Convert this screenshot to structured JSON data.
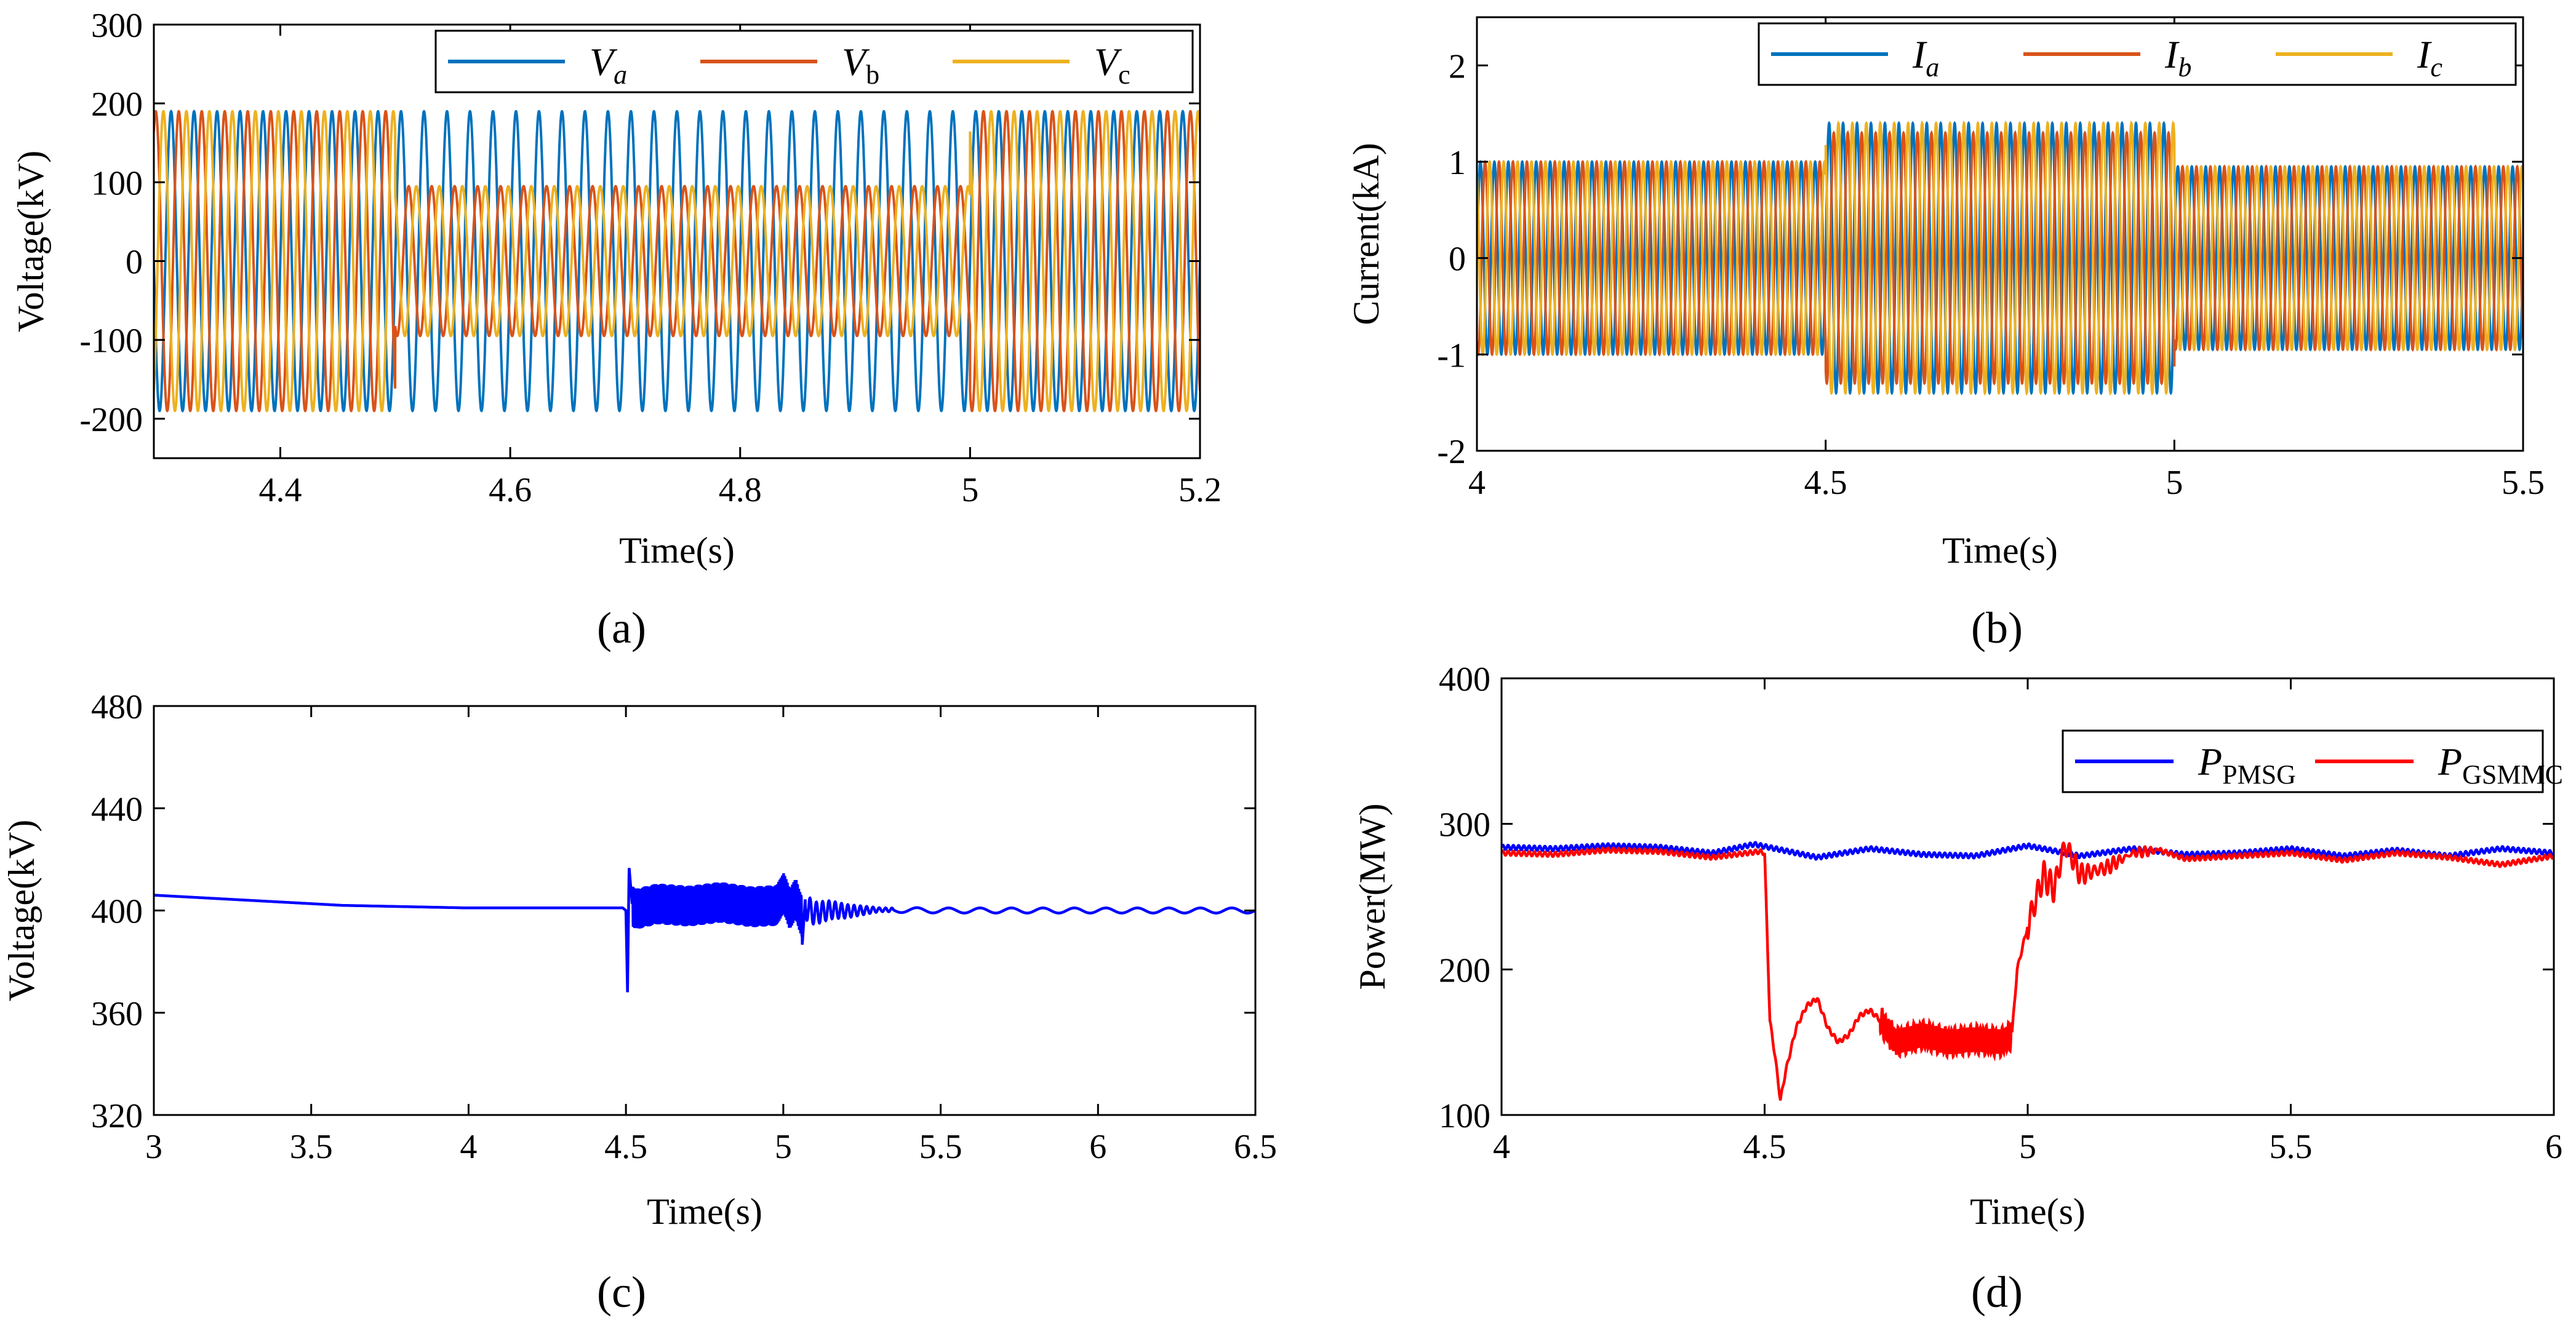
{
  "colors": {
    "blue": "#0072BD",
    "orange": "#D95319",
    "yellow": "#EDB120",
    "pure_blue": "#0000FF",
    "red": "#FF0000"
  },
  "chart_data": [
    {
      "id": "a",
      "type": "line",
      "caption": "(a)",
      "xlabel": "Time(s)",
      "ylabel": "Voltage(kV)",
      "xlim": [
        4.29,
        5.2
      ],
      "ylim": [
        -250,
        300
      ],
      "xticks": [
        4.4,
        4.6,
        4.8,
        5,
        5.2
      ],
      "xtick_labels": [
        "4.4",
        "4.6",
        "4.8",
        "5",
        "5.2"
      ],
      "yticks": [
        -200,
        -100,
        0,
        100,
        200,
        300
      ],
      "ytick_labels": [
        "-200",
        "-100",
        "0",
        "100",
        "200",
        "300"
      ],
      "legend_position": "top-right",
      "waveform": {
        "kind": "three-phase-sine",
        "frequency_hz": 50
      },
      "series": [
        {
          "name": "V",
          "sub": "a",
          "sub_italic": true,
          "color": "#0072BD",
          "amplitude": [
            [
              4.29,
              5.2,
              190
            ]
          ],
          "phase_deg": 0,
          "collapse": []
        },
        {
          "name": "V",
          "sub": "b",
          "sub_italic": false,
          "color": "#D95319",
          "amplitude": [
            [
              4.29,
              4.5,
              190
            ],
            [
              4.5,
              5.0,
              95
            ],
            [
              5.0,
              5.2,
              190
            ]
          ],
          "phase_deg": -120,
          "collapse": []
        },
        {
          "name": "V",
          "sub": "c",
          "sub_italic": false,
          "color": "#EDB120",
          "amplitude": [
            [
              4.29,
              4.5,
              190
            ],
            [
              4.5,
              5.0,
              95
            ],
            [
              5.0,
              5.2,
              190
            ]
          ],
          "phase_deg": 120,
          "collapse": []
        }
      ]
    },
    {
      "id": "b",
      "type": "line",
      "caption": "(b)",
      "xlabel": "Time(s)",
      "ylabel": "Current(kA)",
      "xlim": [
        4,
        5.5
      ],
      "ylim": [
        -2,
        2.5
      ],
      "xticks": [
        4,
        4.5,
        5,
        5.5
      ],
      "xtick_labels": [
        "4",
        "4.5",
        "5",
        "5.5"
      ],
      "yticks": [
        -2,
        -1,
        0,
        1,
        2
      ],
      "ytick_labels": [
        "-2",
        "-1",
        "0",
        "1",
        "2"
      ],
      "legend_position": "top-right",
      "waveform": {
        "kind": "three-phase-sine",
        "frequency_hz": 50
      },
      "series": [
        {
          "name": "I",
          "sub": "a",
          "sub_italic": true,
          "color": "#0072BD",
          "amplitude": [
            [
              4,
              4.5,
              1.0
            ],
            [
              4.5,
              5.0,
              1.4
            ],
            [
              5.0,
              5.5,
              0.95
            ]
          ],
          "phase_deg": 0,
          "collapse": []
        },
        {
          "name": "I",
          "sub": "b",
          "sub_italic": true,
          "color": "#D95319",
          "amplitude": [
            [
              4,
              4.5,
              1.0
            ],
            [
              4.5,
              5.0,
              1.3
            ],
            [
              5.0,
              5.5,
              0.95
            ]
          ],
          "phase_deg": -120,
          "collapse": []
        },
        {
          "name": "I",
          "sub": "c",
          "sub_italic": true,
          "color": "#EDB120",
          "amplitude": [
            [
              4,
              4.5,
              1.0
            ],
            [
              4.5,
              5.0,
              1.4
            ],
            [
              5.0,
              5.5,
              0.95
            ]
          ],
          "phase_deg": 120,
          "collapse": []
        }
      ]
    },
    {
      "id": "c",
      "type": "line",
      "caption": "(c)",
      "xlabel": "Time(s)",
      "ylabel": "Voltage(kV)",
      "xlim": [
        3,
        6.5
      ],
      "ylim": [
        320,
        480
      ],
      "xticks": [
        3,
        3.5,
        4,
        4.5,
        5,
        5.5,
        6,
        6.5
      ],
      "xtick_labels": [
        "3",
        "3.5",
        "4",
        "4.5",
        "5",
        "5.5",
        "6",
        "6.5"
      ],
      "yticks": [
        320,
        360,
        400,
        440,
        480
      ],
      "ytick_labels": [
        "320",
        "360",
        "400",
        "440",
        "480"
      ],
      "legend_position": "none",
      "series": [
        {
          "color": "#0000FF",
          "x": [
            3.0,
            3.3,
            3.6,
            4.0,
            4.3,
            4.49,
            4.5,
            4.505,
            4.51,
            4.52,
            4.53,
            4.6,
            4.7,
            4.8,
            4.9,
            4.98,
            5.0,
            5.02,
            5.04,
            5.06,
            5.07,
            5.1,
            5.15,
            5.2,
            5.3,
            5.5,
            6.0,
            6.5
          ],
          "y": [
            406,
            404,
            402,
            401,
            401,
            401,
            400,
            368,
            417,
            402,
            397,
            404,
            401,
            406,
            400,
            402,
            419,
            398,
            410,
            386,
            405,
            396,
            401,
            399,
            401,
            400,
            400,
            400
          ],
          "noise": [
            {
              "x0": 4.52,
              "x1": 5.06,
              "y_center": 402,
              "half_width": 8,
              "period": 0.004
            },
            {
              "x0": 5.07,
              "x1": 5.35,
              "y_center": 400,
              "half_width": 5,
              "decay": true,
              "period": 0.02
            },
            {
              "x0": 5.35,
              "x1": 6.5,
              "y_center": 400,
              "half_width": 1,
              "period": 0.1
            }
          ]
        }
      ]
    },
    {
      "id": "d",
      "type": "line",
      "caption": "(d)",
      "xlabel": "Time(s)",
      "ylabel": "Power(MW)",
      "xlim": [
        4,
        6
      ],
      "ylim": [
        100,
        400
      ],
      "xticks": [
        4,
        4.5,
        5,
        5.5,
        6
      ],
      "xtick_labels": [
        "4",
        "4.5",
        "5",
        "5.5",
        "6"
      ],
      "yticks": [
        100,
        200,
        300,
        400
      ],
      "ytick_labels": [
        "100",
        "200",
        "300",
        "400"
      ],
      "legend_position": "top-right",
      "series": [
        {
          "name": "P",
          "sub": "PMSG",
          "color": "#0000FF",
          "x": [
            4.0,
            4.1,
            4.2,
            4.3,
            4.4,
            4.48,
            4.6,
            4.7,
            4.8,
            4.9,
            5.0,
            5.1,
            5.2,
            5.3,
            5.4,
            5.5,
            5.6,
            5.7,
            5.8,
            5.9,
            6.0
          ],
          "y": [
            284,
            283,
            285,
            284,
            280,
            286,
            277,
            283,
            279,
            278,
            285,
            278,
            283,
            279,
            280,
            283,
            278,
            282,
            278,
            283,
            280
          ],
          "ripple": {
            "amplitude": 1.5,
            "period": 0.01
          }
        },
        {
          "name": "P",
          "sub": "GSMMC",
          "color": "#FF0000",
          "x": [
            4.0,
            4.1,
            4.2,
            4.3,
            4.4,
            4.49,
            4.5,
            4.51,
            4.52,
            4.53,
            4.54,
            4.56,
            4.58,
            4.6,
            4.62,
            4.64,
            4.66,
            4.68,
            4.7,
            4.72,
            4.75,
            4.8,
            4.85,
            4.9,
            4.95,
            4.97,
            4.98,
            5.0,
            5.03,
            5.05,
            5.07,
            5.08,
            5.1,
            5.15,
            5.2,
            5.25,
            5.3,
            5.4,
            5.5,
            5.6,
            5.7,
            5.8,
            5.9,
            6.0
          ],
          "y": [
            280,
            279,
            282,
            281,
            277,
            281,
            280,
            165,
            140,
            110,
            130,
            160,
            175,
            180,
            160,
            150,
            155,
            168,
            172,
            165,
            150,
            155,
            150,
            152,
            150,
            155,
            200,
            230,
            265,
            255,
            285,
            280,
            265,
            270,
            280,
            282,
            276,
            278,
            280,
            275,
            280,
            277,
            272,
            278
          ],
          "ripple": {
            "amplitude": 1.5,
            "period": 0.01
          },
          "oscillation": [
            {
              "x0": 4.72,
              "x1": 4.97,
              "half_width": 9,
              "period": 0.006
            },
            {
              "x0": 5.0,
              "x1": 5.25,
              "half_width": 10,
              "period": 0.012,
              "decay": true
            }
          ]
        }
      ]
    }
  ]
}
